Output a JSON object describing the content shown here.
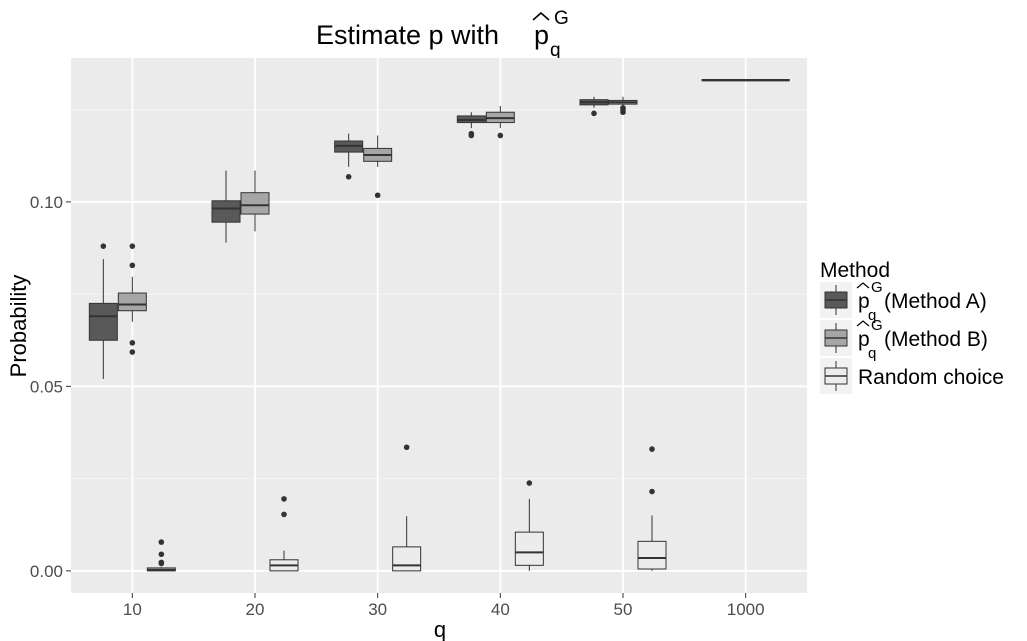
{
  "chart_data": {
    "type": "boxplot",
    "title_main": "Estimate p with ",
    "title_hat_symbol": "p",
    "title_sup": "G",
    "title_sub": "q",
    "xlabel": "q",
    "ylabel": "Probability",
    "categories": [
      "10",
      "20",
      "30",
      "40",
      "50",
      "1000"
    ],
    "yticks": [
      0.0,
      0.05,
      0.1
    ],
    "ytick_labels": [
      "0.00",
      "0.05",
      "0.10"
    ],
    "ylim": [
      -0.006,
      0.139
    ],
    "grid": true,
    "legend": {
      "title": "Method",
      "position": "right",
      "entries": [
        {
          "symbol": "p",
          "sup": "G",
          "sub": "q",
          "suffix": " (Method A)",
          "color": "#595959"
        },
        {
          "symbol": "p",
          "sup": "G",
          "sub": "q",
          "suffix": " (Method B)",
          "color": "#a6a6a6"
        },
        {
          "symbol": "",
          "sup": "",
          "sub": "",
          "suffix": "Random choice",
          "color": "#ececec"
        }
      ]
    },
    "series": [
      {
        "name": "Method A",
        "color": "#595959",
        "boxes": [
          {
            "category": "10",
            "whisker_low": 0.052,
            "q1": 0.0625,
            "median": 0.069,
            "q3": 0.0725,
            "whisker_high": 0.0845,
            "outliers": [
              0.088
            ]
          },
          {
            "category": "20",
            "whisker_low": 0.089,
            "q1": 0.0945,
            "median": 0.0982,
            "q3": 0.1003,
            "whisker_high": 0.1085,
            "outliers": []
          },
          {
            "category": "30",
            "whisker_low": 0.1095,
            "q1": 0.1135,
            "median": 0.1152,
            "q3": 0.1165,
            "whisker_high": 0.1185,
            "outliers": [
              0.1068
            ]
          },
          {
            "category": "40",
            "whisker_low": 0.12,
            "q1": 0.1215,
            "median": 0.1222,
            "q3": 0.1233,
            "whisker_high": 0.1243,
            "outliers": [
              0.118,
              0.1185
            ]
          },
          {
            "category": "50",
            "whisker_low": 0.1255,
            "q1": 0.1263,
            "median": 0.127,
            "q3": 0.1277,
            "whisker_high": 0.1285,
            "outliers": [
              0.124
            ]
          },
          {
            "category": "1000",
            "whisker_low": 0.133,
            "q1": 0.133,
            "median": 0.133,
            "q3": 0.133,
            "whisker_high": 0.133,
            "outliers": []
          }
        ]
      },
      {
        "name": "Method B",
        "color": "#a6a6a6",
        "boxes": [
          {
            "category": "10",
            "whisker_low": 0.0675,
            "q1": 0.0705,
            "median": 0.0722,
            "q3": 0.0753,
            "whisker_high": 0.0797,
            "outliers": [
              0.088,
              0.0828,
              0.0618,
              0.0593
            ]
          },
          {
            "category": "20",
            "whisker_low": 0.092,
            "q1": 0.0967,
            "median": 0.0991,
            "q3": 0.1025,
            "whisker_high": 0.1085,
            "outliers": []
          },
          {
            "category": "30",
            "whisker_low": 0.1095,
            "q1": 0.111,
            "median": 0.1127,
            "q3": 0.1145,
            "whisker_high": 0.118,
            "outliers": [
              0.1018
            ]
          },
          {
            "category": "40",
            "whisker_low": 0.12,
            "q1": 0.1215,
            "median": 0.1227,
            "q3": 0.1243,
            "whisker_high": 0.126,
            "outliers": [
              0.118
            ]
          },
          {
            "category": "50",
            "whisker_low": 0.1255,
            "q1": 0.1265,
            "median": 0.127,
            "q3": 0.1275,
            "whisker_high": 0.1285,
            "outliers": [
              0.1243,
              0.125,
              0.1255
            ]
          },
          {
            "category": "1000",
            "whisker_low": 0.133,
            "q1": 0.133,
            "median": 0.133,
            "q3": 0.133,
            "whisker_high": 0.133,
            "outliers": []
          }
        ]
      },
      {
        "name": "Random choice",
        "color": "#ececec",
        "boxes": [
          {
            "category": "10",
            "whisker_low": 0.0,
            "q1": 0.0,
            "median": 0.0003,
            "q3": 0.0008,
            "whisker_high": 0.001,
            "outliers": [
              0.002,
              0.0023,
              0.0045,
              0.0078
            ]
          },
          {
            "category": "20",
            "whisker_low": 0.0,
            "q1": 0.0,
            "median": 0.0015,
            "q3": 0.003,
            "whisker_high": 0.0055,
            "outliers": [
              0.0153,
              0.0195
            ]
          },
          {
            "category": "30",
            "whisker_low": 0.0,
            "q1": 0.0,
            "median": 0.0015,
            "q3": 0.0065,
            "whisker_high": 0.0148,
            "outliers": [
              0.0335
            ]
          },
          {
            "category": "40",
            "whisker_low": 0.0,
            "q1": 0.0015,
            "median": 0.005,
            "q3": 0.0105,
            "whisker_high": 0.0195,
            "outliers": [
              0.0238
            ]
          },
          {
            "category": "50",
            "whisker_low": 0.0,
            "q1": 0.0005,
            "median": 0.0035,
            "q3": 0.008,
            "whisker_high": 0.015,
            "outliers": [
              0.0215,
              0.033
            ]
          }
        ]
      }
    ]
  }
}
